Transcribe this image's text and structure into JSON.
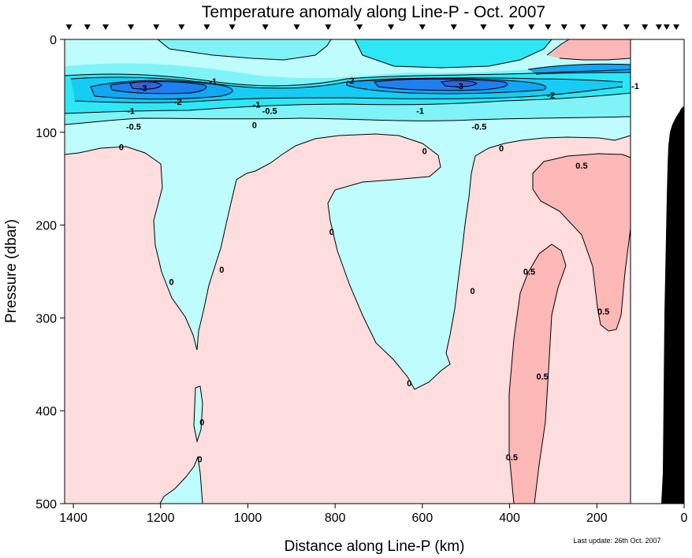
{
  "chart_data": {
    "type": "heatmap",
    "title": "Temperature anomaly along Line-P - Oct. 2007",
    "xlabel": "Distance along Line-P (km)",
    "ylabel": "Pressure (dbar)",
    "xlim": [
      1420,
      0
    ],
    "ylim": [
      500,
      0
    ],
    "x_ticks": [
      1400,
      1200,
      1000,
      800,
      600,
      400,
      200,
      0
    ],
    "y_ticks": [
      0,
      100,
      200,
      300,
      400,
      500
    ],
    "x_tick_labels": [
      "1400",
      "1200",
      "1000",
      "800",
      "600",
      "400",
      "200",
      "0"
    ],
    "y_tick_labels": [
      "0",
      "100",
      "200",
      "300",
      "400",
      "500"
    ],
    "contour_levels": [
      -3,
      -2.5,
      -2,
      -1.5,
      -1,
      -0.5,
      0,
      0.5
    ],
    "colors": {
      "below_-3": "#3a5fdc",
      "-3_to_-2.5": "#1f7ef0",
      "-2.5_to_-2": "#11a7f3",
      "-2_to_-1.5": "#16ccf4",
      "-1.5_to_-1": "#2ee7f5",
      "-1_to_-0.5": "#7ff3f8",
      "-0.5_to_0": "#bffcfd",
      "0_to_0.5": "#fddddd",
      "above_0.5": "#fcb7b7",
      "bathymetry": "#000000"
    },
    "station_distances_km": [
      1410,
      1368,
      1326,
      1268,
      1210,
      1152,
      1094,
      1036,
      960,
      888,
      816,
      744,
      672,
      600,
      528,
      460,
      396,
      350,
      312,
      275,
      232,
      182,
      132,
      90,
      58,
      40,
      18
    ],
    "contour_labels": [
      {
        "x": 1240,
        "y": 52,
        "text": "-3"
      },
      {
        "x": 1080,
        "y": 45,
        "text": "-1"
      },
      {
        "x": 765,
        "y": 44,
        "text": "-2"
      },
      {
        "x": 515,
        "y": 50,
        "text": "-3"
      },
      {
        "x": 305,
        "y": 60,
        "text": "-2"
      },
      {
        "x": 112,
        "y": 50,
        "text": "-1"
      },
      {
        "x": 1160,
        "y": 67,
        "text": "-2"
      },
      {
        "x": 1268,
        "y": 77,
        "text": "-1"
      },
      {
        "x": 980,
        "y": 70,
        "text": "-1"
      },
      {
        "x": 950,
        "y": 77,
        "text": "-0.5"
      },
      {
        "x": 605,
        "y": 77,
        "text": "-1"
      },
      {
        "x": 1262,
        "y": 94,
        "text": "-0.5"
      },
      {
        "x": 985,
        "y": 92,
        "text": "0"
      },
      {
        "x": 470,
        "y": 94,
        "text": "-0.5"
      },
      {
        "x": 1290,
        "y": 116,
        "text": "0"
      },
      {
        "x": 595,
        "y": 120,
        "text": "0"
      },
      {
        "x": 419,
        "y": 117,
        "text": "0"
      },
      {
        "x": 235,
        "y": 136,
        "text": "0.5"
      },
      {
        "x": 808,
        "y": 207,
        "text": "0"
      },
      {
        "x": 1175,
        "y": 261,
        "text": "0"
      },
      {
        "x": 1060,
        "y": 248,
        "text": "0"
      },
      {
        "x": 355,
        "y": 250,
        "text": "0.5"
      },
      {
        "x": 485,
        "y": 271,
        "text": "0"
      },
      {
        "x": 185,
        "y": 293,
        "text": "0.5"
      },
      {
        "x": 325,
        "y": 363,
        "text": "0.5"
      },
      {
        "x": 630,
        "y": 370,
        "text": "0"
      },
      {
        "x": 1105,
        "y": 412,
        "text": "0"
      },
      {
        "x": 1110,
        "y": 452,
        "text": "0"
      },
      {
        "x": 395,
        "y": 450,
        "text": "0.5"
      }
    ],
    "annotation": "Last update: 26th Oct. 2007"
  }
}
